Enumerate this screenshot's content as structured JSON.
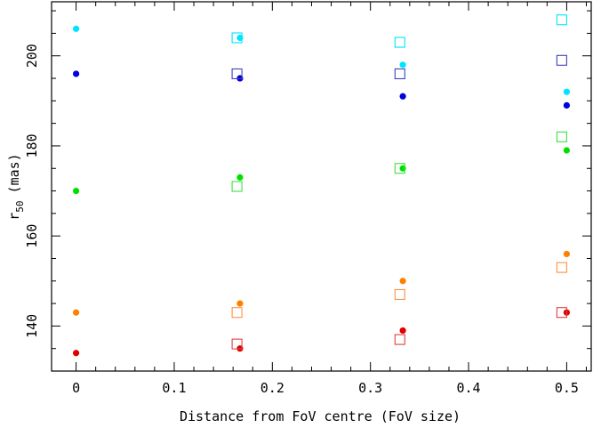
{
  "chart_data": {
    "type": "scatter",
    "xlabel": "Distance from FoV centre (FoV size)",
    "ylabel_main": "r",
    "ylabel_sub": "50",
    "ylabel_unit": "(mas)",
    "xlim": [
      -0.025,
      0.525
    ],
    "ylim": [
      130,
      212
    ],
    "x_ticks": [
      0,
      0.1,
      0.2,
      0.3,
      0.4,
      0.5
    ],
    "x_tick_labels": [
      "0",
      "0.1",
      "0.2",
      "0.3",
      "0.4",
      "0.5"
    ],
    "x_minor_step": 0.02,
    "y_ticks": [
      140,
      160,
      180,
      200
    ],
    "y_tick_labels": [
      "140",
      "160",
      "180",
      "200"
    ],
    "y_minor_step": 5,
    "grid": false,
    "series": [
      {
        "marker": "filled-circle",
        "color": "#00e5ff",
        "x": [
          0,
          0.167,
          0.333,
          0.5
        ],
        "y": [
          206,
          204,
          198,
          192
        ]
      },
      {
        "marker": "filled-circle",
        "color": "#0000e0",
        "x": [
          0,
          0.167,
          0.333,
          0.5
        ],
        "y": [
          196,
          195,
          191,
          189
        ]
      },
      {
        "marker": "filled-circle",
        "color": "#00e000",
        "x": [
          0,
          0.167,
          0.333,
          0.5
        ],
        "y": [
          170,
          173,
          175,
          179
        ]
      },
      {
        "marker": "filled-circle",
        "color": "#ff8000",
        "x": [
          0,
          0.167,
          0.333,
          0.5
        ],
        "y": [
          143,
          145,
          150,
          156
        ]
      },
      {
        "marker": "filled-circle",
        "color": "#e00000",
        "x": [
          0,
          0.167,
          0.333,
          0.5
        ],
        "y": [
          134,
          135,
          139,
          143
        ]
      },
      {
        "marker": "open-square",
        "color": "#00e5ff",
        "x": [
          0.164,
          0.33,
          0.495
        ],
        "y": [
          204,
          203,
          208
        ]
      },
      {
        "marker": "open-square",
        "color": "#4040c0",
        "x": [
          0.164,
          0.33,
          0.495
        ],
        "y": [
          196,
          196,
          199
        ]
      },
      {
        "marker": "open-square",
        "color": "#40e040",
        "x": [
          0.164,
          0.33,
          0.495
        ],
        "y": [
          171,
          175,
          182
        ]
      },
      {
        "marker": "open-square",
        "color": "#ff9040",
        "x": [
          0.164,
          0.33,
          0.495
        ],
        "y": [
          143,
          147,
          153
        ]
      },
      {
        "marker": "open-square",
        "color": "#e04040",
        "x": [
          0.164,
          0.33,
          0.495
        ],
        "y": [
          136,
          137,
          143
        ]
      }
    ]
  }
}
